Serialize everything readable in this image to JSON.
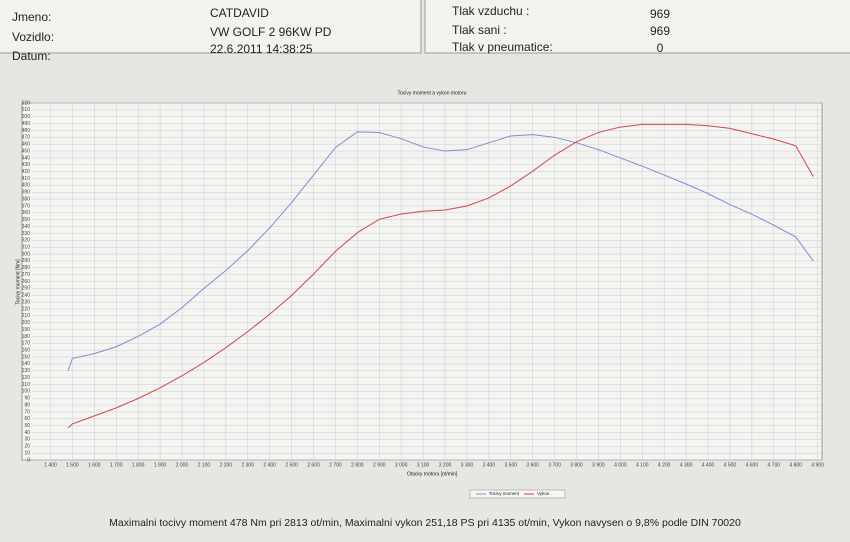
{
  "header": {
    "fields": [
      {
        "label": "Jmeno:",
        "value": "CATDAVID"
      },
      {
        "label": "Vozidlo:",
        "value": "VW GOLF 2 96KW PD"
      },
      {
        "label": "Datum:",
        "value": "22.6.2011 14:38:25"
      }
    ],
    "conditions": [
      {
        "label": "Tlak vzduchu :",
        "value": "969"
      },
      {
        "label": "Tlak sani :",
        "value": "969"
      },
      {
        "label": "Tlak v pneumatice:",
        "value": "0"
      }
    ]
  },
  "chart_data": {
    "type": "line",
    "title": "Tocivy moment a vykon motoru",
    "x_label": "Otacky motoru [ot/min]",
    "y_label": "Tocivy moment [Nm]",
    "x": [
      1480,
      1500,
      1600,
      1700,
      1800,
      1900,
      2000,
      2100,
      2200,
      2300,
      2400,
      2500,
      2600,
      2700,
      2800,
      2900,
      3000,
      3100,
      3200,
      3300,
      3400,
      3500,
      3600,
      3700,
      3800,
      3900,
      4000,
      4100,
      4200,
      4300,
      4400,
      4500,
      4600,
      4700,
      4800,
      4880
    ],
    "series": [
      {
        "name": "Tocivy moment",
        "color": "#7a8fd0",
        "values": [
          130,
          148,
          155,
          165,
          180,
          198,
          222,
          250,
          276,
          305,
          338,
          375,
          415,
          455,
          478,
          477,
          468,
          456,
          450,
          452,
          462,
          472,
          474,
          470,
          462,
          452,
          440,
          428,
          415,
          402,
          388,
          372,
          358,
          342,
          325,
          290
        ]
      },
      {
        "name": "Vykon",
        "color": "#d04848",
        "axis": "y2",
        "values": [
          24,
          27,
          33,
          39,
          46,
          54,
          63,
          73,
          84,
          96,
          109,
          123,
          139,
          156,
          170,
          180,
          184,
          186,
          187,
          190,
          196,
          205,
          216,
          228,
          238,
          245,
          249,
          251,
          251,
          251,
          250,
          248,
          244,
          240,
          235,
          212
        ]
      }
    ],
    "xlim": [
      1270,
      4920
    ],
    "xticks": [
      {
        "value": 1400,
        "label": "1 400"
      },
      {
        "value": 1500,
        "label": "1 500"
      },
      {
        "value": 1600,
        "label": "1 600"
      },
      {
        "value": 1700,
        "label": "1 700"
      },
      {
        "value": 1800,
        "label": "1 800"
      },
      {
        "value": 1900,
        "label": "1 900"
      },
      {
        "value": 2000,
        "label": "2 000"
      },
      {
        "value": 2100,
        "label": "2 100"
      },
      {
        "value": 2200,
        "label": "2 200"
      },
      {
        "value": 2300,
        "label": "2 300"
      },
      {
        "value": 2400,
        "label": "2 400"
      },
      {
        "value": 2500,
        "label": "2 500"
      },
      {
        "value": 2600,
        "label": "2 600"
      },
      {
        "value": 2700,
        "label": "2 700"
      },
      {
        "value": 2800,
        "label": "2 800"
      },
      {
        "value": 2900,
        "label": "2 900"
      },
      {
        "value": 3000,
        "label": "3 000"
      },
      {
        "value": 3100,
        "label": "3 100"
      },
      {
        "value": 3200,
        "label": "3 200"
      },
      {
        "value": 3300,
        "label": "3 300"
      },
      {
        "value": 3400,
        "label": "3 400"
      },
      {
        "value": 3500,
        "label": "3 500"
      },
      {
        "value": 3600,
        "label": "3 600"
      },
      {
        "value": 3700,
        "label": "3 700"
      },
      {
        "value": 3800,
        "label": "3 800"
      },
      {
        "value": 3900,
        "label": "3 900"
      },
      {
        "value": 4000,
        "label": "4 000"
      },
      {
        "value": 4100,
        "label": "4 100"
      },
      {
        "value": 4200,
        "label": "4 200"
      },
      {
        "value": 4300,
        "label": "4 300"
      },
      {
        "value": 4400,
        "label": "4 400"
      },
      {
        "value": 4500,
        "label": "4 500"
      },
      {
        "value": 4600,
        "label": "4 600"
      },
      {
        "value": 4700,
        "label": "4 700"
      },
      {
        "value": 4800,
        "label": "4 800"
      },
      {
        "value": 4900,
        "label": "4 900"
      }
    ],
    "ylim": [
      0,
      520
    ],
    "yticks": [
      0,
      10,
      20,
      30,
      40,
      50,
      60,
      70,
      80,
      90,
      100,
      110,
      120,
      130,
      140,
      150,
      160,
      170,
      180,
      190,
      200,
      210,
      220,
      230,
      240,
      250,
      260,
      270,
      280,
      290,
      300,
      310,
      320,
      330,
      340,
      350,
      360,
      370,
      380,
      390,
      400,
      410,
      420,
      430,
      440,
      450,
      460,
      470,
      480,
      490,
      500,
      510,
      520
    ],
    "y2lim": [
      0,
      267
    ],
    "grid": true
  },
  "footer": "Maximalni tocivy moment 478 Nm pri 2813 ot/min,  Maximalni vykon 251,18 PS pri 4135 ot/min,  Vykon navysen o 9,8% podle DIN 70020"
}
